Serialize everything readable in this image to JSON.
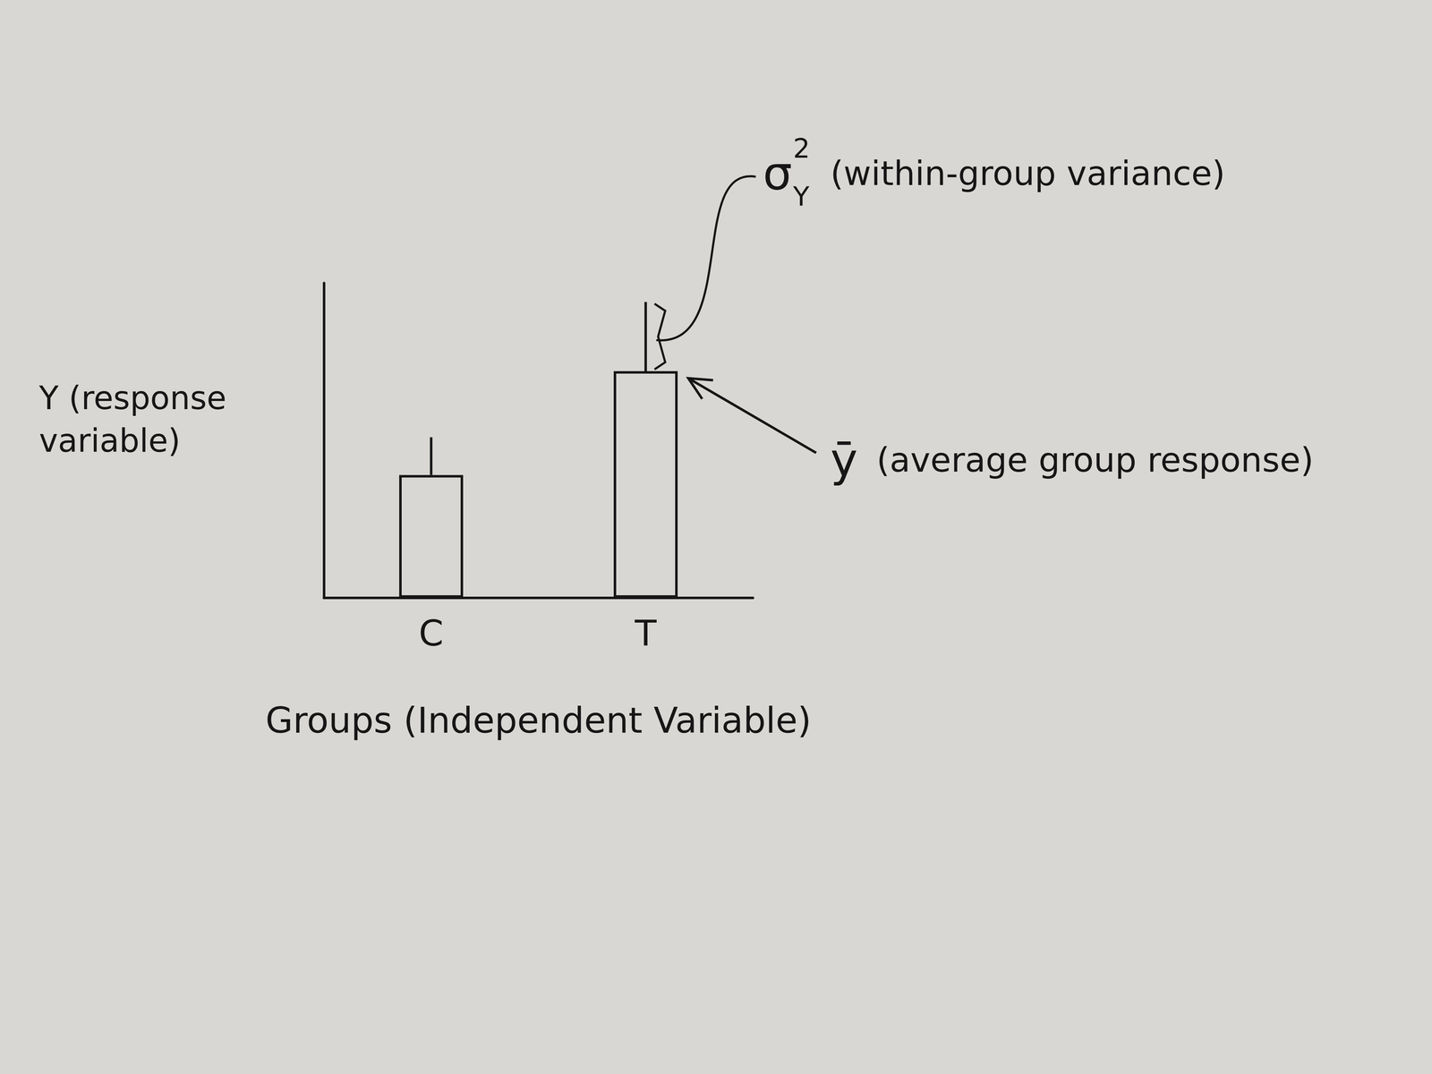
{
  "chart_data": {
    "type": "bar",
    "x_label": "Groups (Independent Variable)",
    "y_label": "Y (response variable)",
    "categories": [
      "C",
      "T"
    ],
    "values": [
      39,
      72
    ],
    "errors": [
      12,
      22
    ],
    "ylim": [
      0,
      100
    ],
    "tick_labels": "x",
    "grid": false,
    "annotations": [
      {
        "symbol": "σ",
        "superscript": "2",
        "subscript": "Y",
        "text": "(within-group variance)",
        "target": "T",
        "mark": "error"
      },
      {
        "symbol": "ȳ",
        "text": "(average group response)",
        "target": "T",
        "mark": "mean"
      }
    ]
  }
}
